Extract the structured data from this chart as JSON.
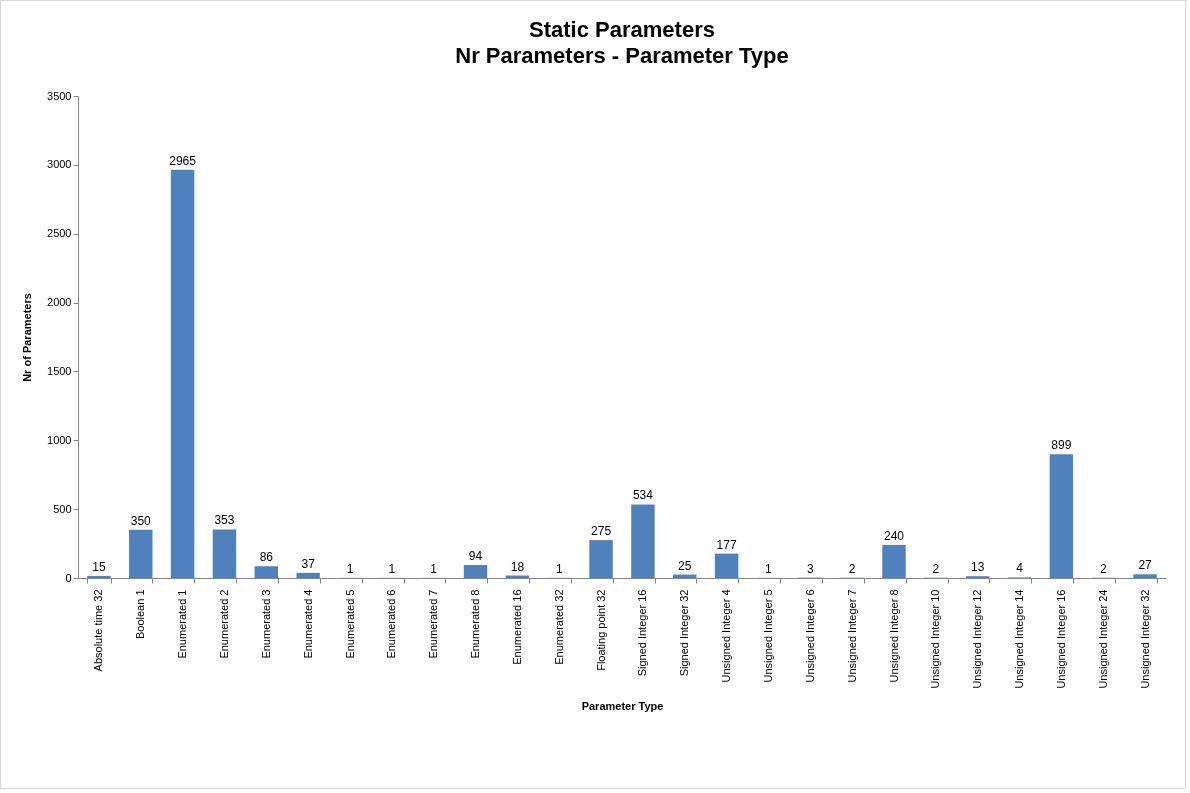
{
  "chart_data": {
    "type": "bar",
    "title": "Static Parameters",
    "subtitle": "Nr Parameters - Parameter Type",
    "xlabel": "Parameter Type",
    "ylabel": "Nr of Parameters",
    "categories": [
      "Absolute time 32",
      "Boolean 1",
      "Enumerated 1",
      "Enumerated 2",
      "Enumerated 3",
      "Enumerated 4",
      "Enumerated 5",
      "Enumerated 6",
      "Enumerated 7",
      "Enumerated 8",
      "Enumerated 16",
      "Enumerated 32",
      "Floating point 32",
      "Signed Integer 16",
      "Signed Integer 32",
      "Unsigned Integer 4",
      "Unsigned Integer 5",
      "Unsigned Integer 6",
      "Unsigned Integer 7",
      "Unsigned Integer 8",
      "Unsigned Integer 10",
      "Unsigned Integer 12",
      "Unsigned Integer 14",
      "Unsigned Integer 16",
      "Unsigned Integer 24",
      "Unsigned Integer 32"
    ],
    "values": [
      15,
      350,
      2965,
      353,
      86,
      37,
      1,
      1,
      1,
      94,
      18,
      1,
      275,
      534,
      25,
      177,
      1,
      3,
      2,
      240,
      2,
      13,
      4,
      899,
      2,
      27
    ],
    "color": "#4f81bd",
    "ylim": [
      0,
      3500
    ],
    "yticks": [
      0,
      500,
      1000,
      1500,
      2000,
      2500,
      3000,
      3500
    ],
    "grid": false,
    "data_labels": true
  }
}
